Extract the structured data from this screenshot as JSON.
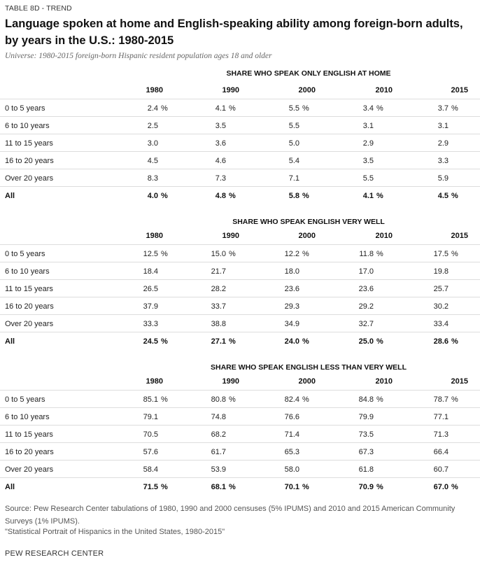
{
  "label": "TABLE 8D - TREND",
  "title": "Language spoken at home and English-speaking ability among foreign-born adults, by years in the U.S.: 1980-2015",
  "subtitle": "Universe: 1980-2015 foreign-born Hispanic resident population ages 18 and older",
  "years": [
    "1980",
    "1990",
    "2000",
    "2010",
    "2015"
  ],
  "sections": [
    {
      "title": "SHARE WHO SPEAK ONLY ENGLISH AT HOME",
      "rows": [
        {
          "label": "0 to 5 years",
          "values": [
            "2.4",
            "4.1",
            "5.5",
            "3.4",
            "3.7"
          ],
          "pct": true
        },
        {
          "label": "6 to 10 years",
          "values": [
            "2.5",
            "3.5",
            "5.5",
            "3.1",
            "3.1"
          ],
          "pct": false
        },
        {
          "label": "11 to 15 years",
          "values": [
            "3.0",
            "3.6",
            "5.0",
            "2.9",
            "2.9"
          ],
          "pct": false
        },
        {
          "label": "16 to 20 years",
          "values": [
            "4.5",
            "4.6",
            "5.4",
            "3.5",
            "3.3"
          ],
          "pct": false
        },
        {
          "label": "Over 20 years",
          "values": [
            "8.3",
            "7.3",
            "7.1",
            "5.5",
            "5.9"
          ],
          "pct": false
        },
        {
          "label": "All",
          "values": [
            "4.0",
            "4.8",
            "5.8",
            "4.1",
            "4.5"
          ],
          "pct": true,
          "bold": true
        }
      ]
    },
    {
      "title": "SHARE WHO SPEAK ENGLISH VERY WELL",
      "rows": [
        {
          "label": "0 to 5 years",
          "values": [
            "12.5",
            "15.0",
            "12.2",
            "11.8",
            "17.5"
          ],
          "pct": true
        },
        {
          "label": "6 to 10 years",
          "values": [
            "18.4",
            "21.7",
            "18.0",
            "17.0",
            "19.8"
          ],
          "pct": false
        },
        {
          "label": "11 to 15 years",
          "values": [
            "26.5",
            "28.2",
            "23.6",
            "23.6",
            "25.7"
          ],
          "pct": false
        },
        {
          "label": "16 to 20 years",
          "values": [
            "37.9",
            "33.7",
            "29.3",
            "29.2",
            "30.2"
          ],
          "pct": false
        },
        {
          "label": "Over 20 years",
          "values": [
            "33.3",
            "38.8",
            "34.9",
            "32.7",
            "33.4"
          ],
          "pct": false
        },
        {
          "label": "All",
          "values": [
            "24.5",
            "27.1",
            "24.0",
            "25.0",
            "28.6"
          ],
          "pct": true,
          "bold": true
        }
      ]
    },
    {
      "title": "SHARE WHO SPEAK ENGLISH LESS THAN VERY WELL",
      "rows": [
        {
          "label": "0 to 5 years",
          "values": [
            "85.1",
            "80.8",
            "82.4",
            "84.8",
            "78.7"
          ],
          "pct": true
        },
        {
          "label": "6 to 10 years",
          "values": [
            "79.1",
            "74.8",
            "76.6",
            "79.9",
            "77.1"
          ],
          "pct": false
        },
        {
          "label": "11 to 15 years",
          "values": [
            "70.5",
            "68.2",
            "71.4",
            "73.5",
            "71.3"
          ],
          "pct": false
        },
        {
          "label": "16 to 20 years",
          "values": [
            "57.6",
            "61.7",
            "65.3",
            "67.3",
            "66.4"
          ],
          "pct": false
        },
        {
          "label": "Over 20 years",
          "values": [
            "58.4",
            "53.9",
            "58.0",
            "61.8",
            "60.7"
          ],
          "pct": false
        },
        {
          "label": "All",
          "values": [
            "71.5",
            "68.1",
            "70.1",
            "70.9",
            "67.0"
          ],
          "pct": true,
          "bold": true
        }
      ]
    }
  ],
  "pct_symbol": "%",
  "source": "Source: Pew Research Center tabulations of 1980, 1990 and 2000 censuses (5% IPUMS) and 2010 and 2015 American Community Surveys (1% IPUMS).",
  "note": "\"Statistical Portrait of Hispanics in the United States, 1980-2015\"",
  "brand": "PEW RESEARCH CENTER"
}
